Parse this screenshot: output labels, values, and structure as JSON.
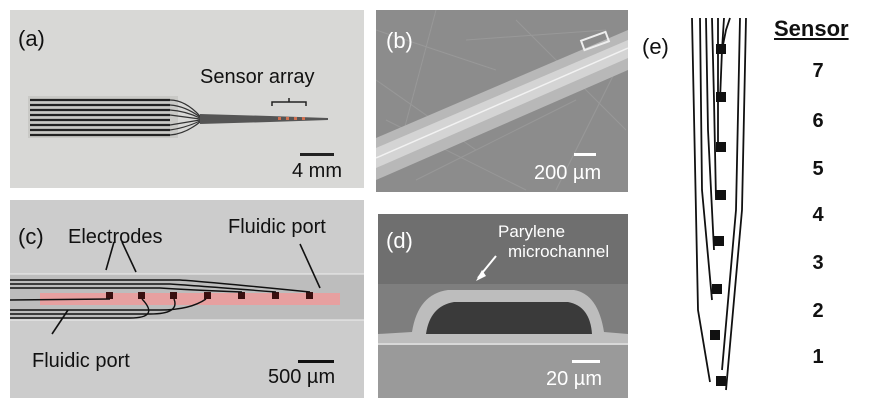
{
  "panels": {
    "a": {
      "label": "(a)",
      "annotation": "Sensor array",
      "scale": "4 mm"
    },
    "b": {
      "label": "(b)",
      "scale": "200 µm"
    },
    "c": {
      "label": "(c)",
      "electrodes": "Electrodes",
      "port_top": "Fluidic port",
      "port_bottom": "Fluidic port",
      "scale": "500 µm"
    },
    "d": {
      "label": "(d)",
      "annotation_line1": "Parylene",
      "annotation_line2": "microchannel",
      "scale": "20 µm"
    },
    "e": {
      "label": "(e)",
      "header": "Sensor",
      "sensors": [
        "7",
        "6",
        "5",
        "4",
        "3",
        "2",
        "1"
      ]
    }
  }
}
